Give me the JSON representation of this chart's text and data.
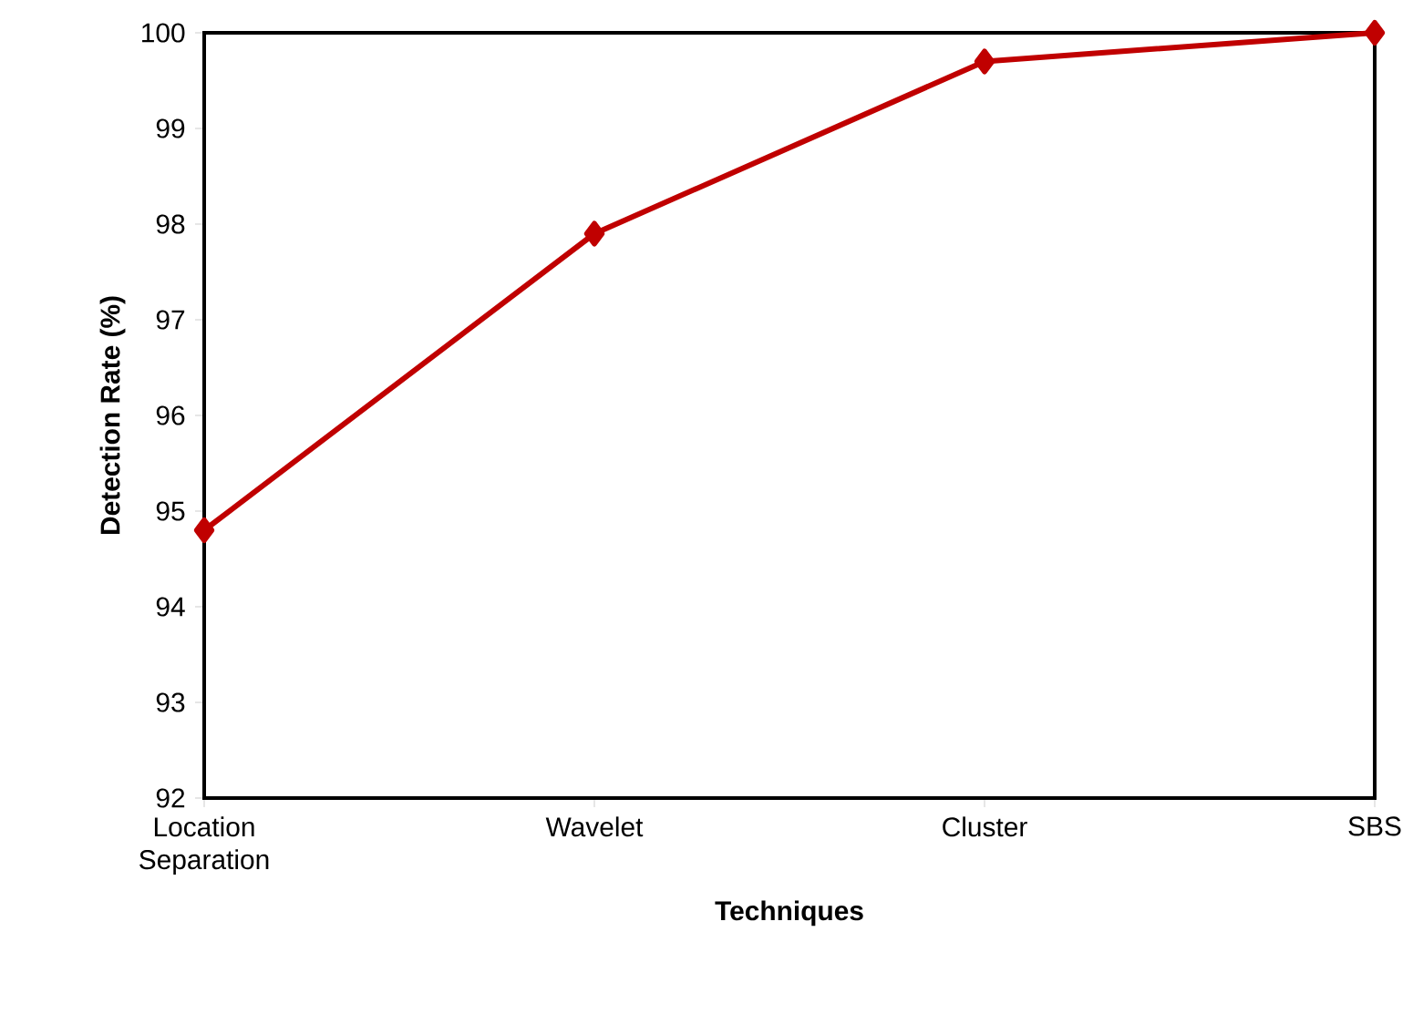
{
  "chart_data": {
    "type": "line",
    "xlabel": "Techniques",
    "ylabel": "Detection Rate (%)",
    "categories": [
      "Location Separation",
      "Wavelet",
      "Cluster",
      "SBS"
    ],
    "series": [
      {
        "color": "#c00000",
        "values": [
          94.8,
          97.9,
          99.7,
          100
        ]
      }
    ],
    "ylim": [
      92,
      100
    ],
    "yticks": [
      92,
      93,
      94,
      95,
      96,
      97,
      98,
      99,
      100
    ],
    "marker": "diamond",
    "line_style": "solid",
    "grid": false
  }
}
